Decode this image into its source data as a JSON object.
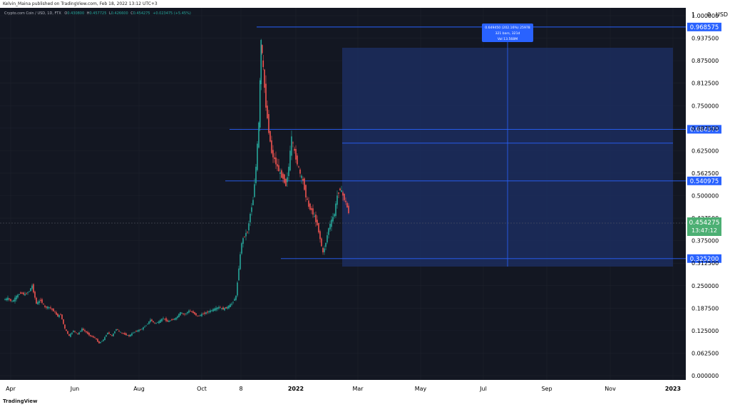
{
  "header": {
    "publisher": "Kelvin_Maina published on TradingView.com, Feb 18, 2022 13:12 UTC+3"
  },
  "footer": {
    "brand": "TradingView"
  },
  "legend": {
    "symbol": "Crypto.com Coin / USD, 1D, FTX",
    "o_label": "O",
    "o": "0.430800",
    "h_label": "H",
    "h": "0.457725",
    "l_label": "L",
    "l": "0.426600",
    "c_label": "C",
    "c": "0.454275",
    "change": "+0.023475 (+5.45%)"
  },
  "measure_box": {
    "line1": "0.649450 (202.16%) 25978",
    "line2": "321 bars, 321d",
    "line3": "Vol 13.568M"
  },
  "price_badge": {
    "price": "0.454275",
    "countdown": "13:47:12"
  },
  "colors": {
    "background": "#131722",
    "grid": "#1e222d",
    "up": "#26a69a",
    "down": "#ef5350",
    "level": "#2962ff",
    "range_fill": "#1c2d5e",
    "axis_text": "#000000",
    "current_price": "#4caf73"
  },
  "chart_data": {
    "type": "candlestick",
    "currency": "USD",
    "y_axis_top_label": "1",
    "y_axis_top_label_2": "0",
    "ylim": [
      0,
      1.0
    ],
    "y_ticks": [
      "1.000000",
      "0.937500",
      "0.875000",
      "0.812500",
      "0.750000",
      "0.687500",
      "0.625000",
      "0.562500",
      "0.500000",
      "0.437500",
      "0.375000",
      "0.312500",
      "0.250000",
      "0.187500",
      "0.125000",
      "0.062500",
      "0.000000"
    ],
    "x_ticks": [
      "Apr",
      "Jun",
      "Aug",
      "Oct",
      "8",
      "2022",
      "Mar",
      "May",
      "Jul",
      "Sep",
      "Nov",
      "2023"
    ],
    "horizontal_levels": [
      {
        "value": 0.968575,
        "label": "0.968575"
      },
      {
        "value": 0.684375,
        "label": "0.684375"
      },
      {
        "value": 0.540975,
        "label": "0.540975"
      },
      {
        "value": 0.3252,
        "label": "0.325200"
      }
    ],
    "extra_level": 0.646,
    "current_price": 0.454275,
    "price_path": [
      [
        0,
        0.21
      ],
      [
        6,
        0.215
      ],
      [
        12,
        0.205
      ],
      [
        18,
        0.22
      ],
      [
        24,
        0.23
      ],
      [
        30,
        0.225
      ],
      [
        36,
        0.235
      ],
      [
        40,
        0.25
      ],
      [
        46,
        0.2
      ],
      [
        52,
        0.21
      ],
      [
        58,
        0.19
      ],
      [
        64,
        0.19
      ],
      [
        70,
        0.18
      ],
      [
        76,
        0.165
      ],
      [
        80,
        0.17
      ],
      [
        86,
        0.13
      ],
      [
        92,
        0.11
      ],
      [
        98,
        0.125
      ],
      [
        104,
        0.115
      ],
      [
        110,
        0.13
      ],
      [
        116,
        0.12
      ],
      [
        122,
        0.11
      ],
      [
        128,
        0.105
      ],
      [
        134,
        0.09
      ],
      [
        140,
        0.1
      ],
      [
        146,
        0.12
      ],
      [
        152,
        0.11
      ],
      [
        158,
        0.13
      ],
      [
        164,
        0.12
      ],
      [
        170,
        0.115
      ],
      [
        176,
        0.11
      ],
      [
        182,
        0.12
      ],
      [
        188,
        0.125
      ],
      [
        194,
        0.13
      ],
      [
        200,
        0.14
      ],
      [
        206,
        0.155
      ],
      [
        212,
        0.145
      ],
      [
        218,
        0.15
      ],
      [
        224,
        0.16
      ],
      [
        230,
        0.15
      ],
      [
        236,
        0.155
      ],
      [
        242,
        0.16
      ],
      [
        248,
        0.175
      ],
      [
        254,
        0.17
      ],
      [
        260,
        0.18
      ],
      [
        266,
        0.175
      ],
      [
        272,
        0.165
      ],
      [
        278,
        0.17
      ],
      [
        284,
        0.175
      ],
      [
        290,
        0.18
      ],
      [
        296,
        0.185
      ],
      [
        302,
        0.19
      ],
      [
        308,
        0.185
      ],
      [
        314,
        0.19
      ],
      [
        320,
        0.2
      ],
      [
        326,
        0.22
      ],
      [
        330,
        0.3
      ],
      [
        334,
        0.37
      ],
      [
        338,
        0.39
      ],
      [
        342,
        0.4
      ],
      [
        346,
        0.45
      ],
      [
        350,
        0.49
      ],
      [
        354,
        0.58
      ],
      [
        358,
        0.7
      ],
      [
        361,
        0.93
      ],
      [
        364,
        0.85
      ],
      [
        368,
        0.75
      ],
      [
        372,
        0.68
      ],
      [
        376,
        0.62
      ],
      [
        380,
        0.6
      ],
      [
        384,
        0.58
      ],
      [
        388,
        0.56
      ],
      [
        392,
        0.55
      ],
      [
        396,
        0.53
      ],
      [
        400,
        0.58
      ],
      [
        404,
        0.66
      ],
      [
        408,
        0.62
      ],
      [
        412,
        0.59
      ],
      [
        416,
        0.56
      ],
      [
        420,
        0.54
      ],
      [
        424,
        0.5
      ],
      [
        428,
        0.47
      ],
      [
        432,
        0.46
      ],
      [
        436,
        0.44
      ],
      [
        440,
        0.42
      ],
      [
        444,
        0.38
      ],
      [
        448,
        0.34
      ],
      [
        452,
        0.37
      ],
      [
        456,
        0.41
      ],
      [
        460,
        0.43
      ],
      [
        464,
        0.45
      ],
      [
        468,
        0.5
      ],
      [
        472,
        0.52
      ],
      [
        476,
        0.5
      ],
      [
        480,
        0.48
      ],
      [
        484,
        0.454
      ]
    ]
  }
}
